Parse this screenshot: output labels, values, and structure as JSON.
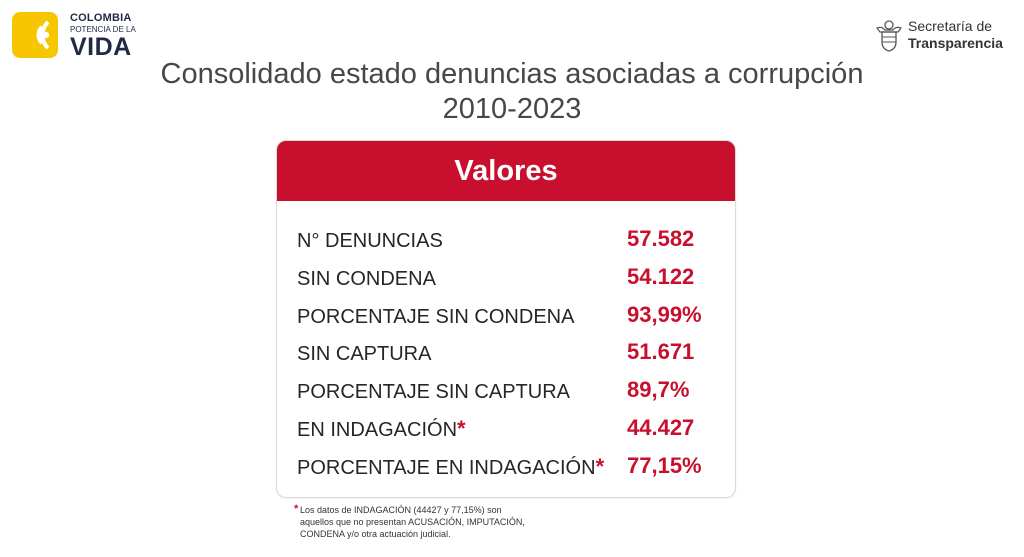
{
  "logo_left": {
    "line1": "COLOMBIA",
    "line2": "POTENCIA DE LA",
    "line3": "VIDA"
  },
  "logo_right": {
    "line1": "Secretaría de",
    "line2": "Transparencia"
  },
  "title": {
    "line1": "Consolidado estado denuncias asociadas a corrupción",
    "line2": "2010-2023"
  },
  "card": {
    "header": "Valores",
    "rows": [
      {
        "label": "N° DENUNCIAS",
        "value": "57.582",
        "asterisk": ""
      },
      {
        "label": "SIN CONDENA",
        "value": "54.122",
        "asterisk": ""
      },
      {
        "label": "PORCENTAJE SIN CONDENA",
        "value": "93,99%",
        "asterisk": ""
      },
      {
        "label": "SIN CAPTURA",
        "value": "51.671",
        "asterisk": ""
      },
      {
        "label": "PORCENTAJE SIN CAPTURA",
        "value": "89,7%",
        "asterisk": ""
      },
      {
        "label": "EN INDAGACIÓN",
        "value": "44.427",
        "asterisk": "*"
      },
      {
        "label": "PORCENTAJE EN INDAGACIÓN",
        "value": "77,15%",
        "asterisk": "*"
      }
    ]
  },
  "footnote": {
    "marker": "*",
    "line1": "Los datos de INDAGACIÓN (44427 y 77,15%) son",
    "line2": "aquellos que no presentan ACUSACIÓN, IMPUTACIÓN,",
    "line3": "CONDENA y/o otra actuación judicial."
  },
  "colors": {
    "accent": "#c8102e",
    "logo_yellow": "#f7c600"
  }
}
